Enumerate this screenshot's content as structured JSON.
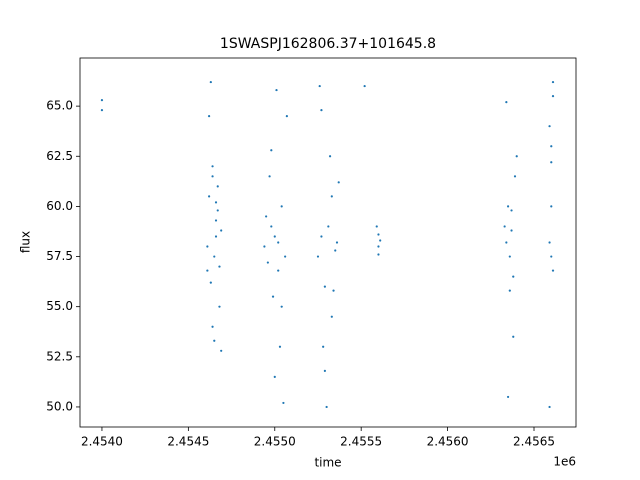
{
  "chart_data": {
    "type": "scatter",
    "title": "1SWASPJ162806.37+101645.8",
    "x_label": "time",
    "y_label": "flux",
    "x_offset_label": "1e6",
    "xlim": [
      2.453873,
      2.456743
    ],
    "ylim": [
      49.0,
      67.4
    ],
    "xticks": [
      {
        "value": 2.454,
        "label": "2.4540"
      },
      2.4545,
      {
        "value": 2.455,
        "label": "2.4550"
      },
      2.4555,
      {
        "value": 2.456,
        "label": "2.4560"
      },
      2.4565
    ],
    "yticks": [
      {
        "value": 50,
        "label": "50.0"
      },
      52.5,
      {
        "value": 55,
        "label": "55.0"
      },
      57.5,
      {
        "value": 60,
        "label": "60.0"
      },
      62.5,
      {
        "value": 65,
        "label": "65.0"
      }
    ],
    "series": [
      {
        "color": "#1f77b4",
        "x": [
          2.45461,
          2.45462,
          2.45463,
          2.45464,
          2.45465,
          2.45466,
          2.45467,
          2.45468,
          2.45469,
          2.45462,
          2.45464,
          2.45466,
          2.45468,
          2.45463,
          2.45465,
          2.45467,
          2.45461,
          2.45469,
          2.45464,
          2.45466,
          2.45494,
          2.45496,
          2.45498,
          2.455,
          2.45502,
          2.45504,
          2.45506,
          2.45497,
          2.45499,
          2.45501,
          2.45503,
          2.45505,
          2.45495,
          2.455,
          2.45507,
          2.45502,
          2.45498,
          2.45504,
          2.45525,
          2.45527,
          2.45529,
          2.45531,
          2.45533,
          2.45535,
          2.45537,
          2.45526,
          2.45528,
          2.4553,
          2.45532,
          2.45534,
          2.45536,
          2.45527,
          2.45529,
          2.45533,
          2.4556,
          2.4556,
          2.4556,
          2.45561,
          2.45559,
          2.45552,
          2.45633,
          2.45634,
          2.45635,
          2.45636,
          2.45637,
          2.45638,
          2.45639,
          2.4564,
          2.45634,
          2.45636,
          2.45638,
          2.45635,
          2.45637,
          2.45659,
          2.4566,
          2.45661,
          2.4566,
          2.45659,
          2.45661,
          2.4566,
          2.4566,
          2.45659,
          2.45661,
          2.454,
          2.454
        ],
        "values": [
          58.0,
          60.5,
          56.2,
          62.0,
          57.5,
          59.3,
          61.0,
          55.0,
          58.8,
          64.5,
          54.0,
          60.2,
          57.0,
          66.2,
          53.3,
          59.8,
          56.8,
          52.8,
          61.5,
          58.5,
          58.0,
          57.2,
          59.0,
          58.5,
          56.8,
          60.0,
          57.5,
          61.5,
          55.5,
          65.8,
          53.0,
          50.2,
          59.5,
          51.5,
          64.5,
          58.2,
          62.8,
          55.0,
          57.5,
          58.5,
          56.0,
          59.0,
          60.5,
          57.8,
          61.2,
          66.0,
          53.0,
          50.0,
          62.5,
          55.8,
          58.2,
          64.8,
          51.8,
          54.5,
          58.0,
          58.6,
          57.6,
          58.3,
          59.0,
          66.0,
          59.0,
          58.2,
          60.0,
          57.5,
          58.8,
          56.5,
          61.5,
          62.5,
          65.2,
          55.8,
          53.5,
          50.5,
          59.8,
          64.0,
          63.0,
          65.5,
          57.5,
          58.2,
          56.8,
          62.2,
          60.0,
          50.0,
          66.2,
          65.3,
          64.8
        ]
      }
    ]
  }
}
